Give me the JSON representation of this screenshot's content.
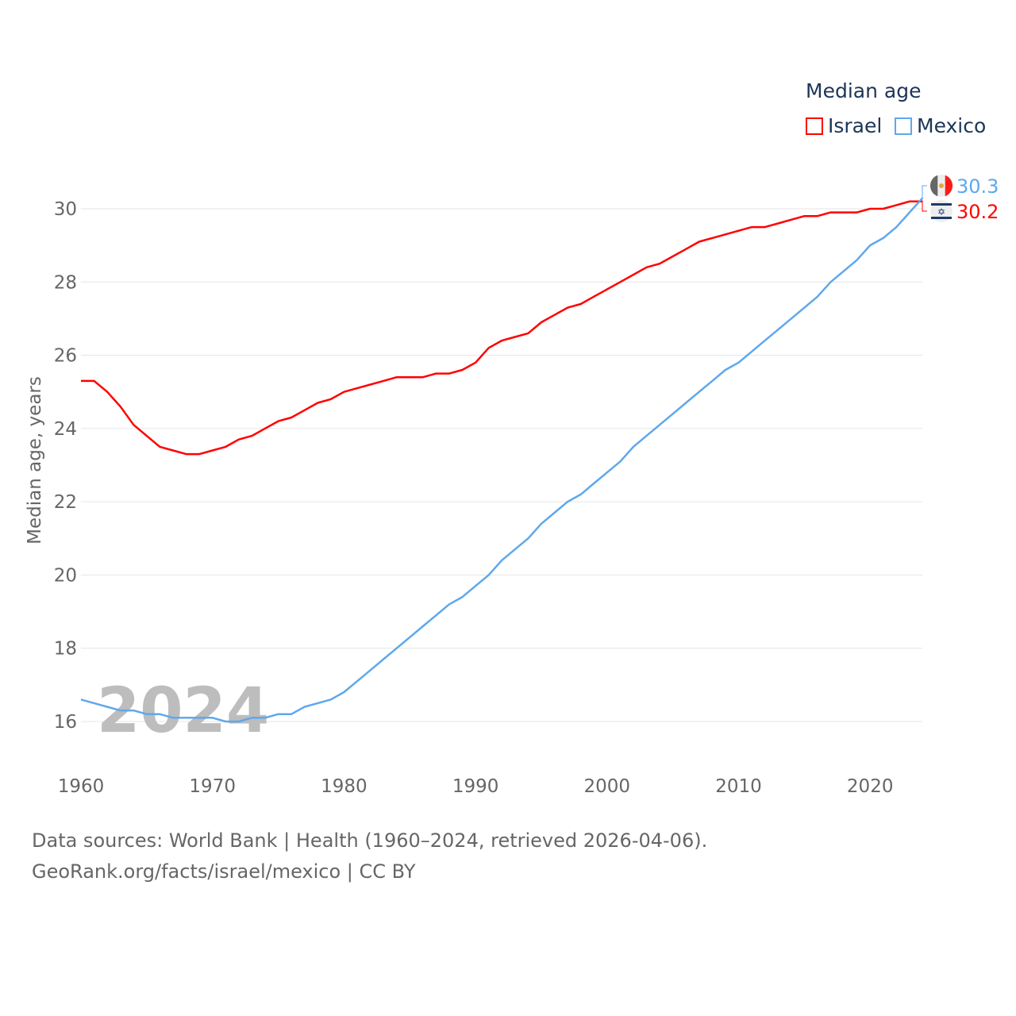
{
  "chart_data": {
    "type": "line",
    "title": "Median age",
    "xlabel": "",
    "ylabel": "Median age, years",
    "xlim": [
      1960,
      2024
    ],
    "ylim": [
      15,
      31
    ],
    "grid": true,
    "legend_placement": "top-right",
    "x_ticks": [
      "1960",
      "1970",
      "1980",
      "1990",
      "2000",
      "2010",
      "2020"
    ],
    "y_ticks": [
      "16",
      "18",
      "20",
      "22",
      "24",
      "26",
      "28",
      "30"
    ],
    "year_watermark": "2024",
    "x": [
      1960,
      1961,
      1962,
      1963,
      1964,
      1965,
      1966,
      1967,
      1968,
      1969,
      1970,
      1971,
      1972,
      1973,
      1974,
      1975,
      1976,
      1977,
      1978,
      1979,
      1980,
      1981,
      1982,
      1983,
      1984,
      1985,
      1986,
      1987,
      1988,
      1989,
      1990,
      1991,
      1992,
      1993,
      1994,
      1995,
      1996,
      1997,
      1998,
      1999,
      2000,
      2001,
      2002,
      2003,
      2004,
      2005,
      2006,
      2007,
      2008,
      2009,
      2010,
      2011,
      2012,
      2013,
      2014,
      2015,
      2016,
      2017,
      2018,
      2019,
      2020,
      2021,
      2022,
      2023,
      2024
    ],
    "series": [
      {
        "name": "Israel",
        "color": "#ff0000",
        "end_label": "30.2",
        "values": [
          25.3,
          25.3,
          25.0,
          24.6,
          24.1,
          23.8,
          23.5,
          23.4,
          23.3,
          23.3,
          23.4,
          23.5,
          23.7,
          23.8,
          24.0,
          24.2,
          24.3,
          24.5,
          24.7,
          24.8,
          25.0,
          25.1,
          25.2,
          25.3,
          25.4,
          25.4,
          25.4,
          25.5,
          25.5,
          25.6,
          25.8,
          26.2,
          26.4,
          26.5,
          26.6,
          26.9,
          27.1,
          27.3,
          27.4,
          27.6,
          27.8,
          28.0,
          28.2,
          28.4,
          28.5,
          28.7,
          28.9,
          29.1,
          29.2,
          29.3,
          29.4,
          29.5,
          29.5,
          29.6,
          29.7,
          29.8,
          29.8,
          29.9,
          29.9,
          29.9,
          30.0,
          30.0,
          30.1,
          30.2,
          30.2
        ]
      },
      {
        "name": "Mexico",
        "color": "#5ea8ee",
        "end_label": "30.3",
        "values": [
          16.6,
          16.5,
          16.4,
          16.3,
          16.3,
          16.2,
          16.2,
          16.1,
          16.1,
          16.1,
          16.1,
          16.0,
          16.0,
          16.1,
          16.1,
          16.2,
          16.2,
          16.4,
          16.5,
          16.6,
          16.8,
          17.1,
          17.4,
          17.7,
          18.0,
          18.3,
          18.6,
          18.9,
          19.2,
          19.4,
          19.7,
          20.0,
          20.4,
          20.7,
          21.0,
          21.4,
          21.7,
          22.0,
          22.2,
          22.5,
          22.8,
          23.1,
          23.5,
          23.8,
          24.1,
          24.4,
          24.7,
          25.0,
          25.3,
          25.6,
          25.8,
          26.1,
          26.4,
          26.7,
          27.0,
          27.3,
          27.6,
          28.0,
          28.3,
          28.6,
          29.0,
          29.2,
          29.5,
          29.9,
          30.3
        ]
      }
    ]
  },
  "footer": {
    "line1": "Data sources: World Bank | Health (1960–2024, retrieved 2026-04-06).",
    "line2": "GeoRank.org/facts/israel/mexico | CC BY"
  }
}
